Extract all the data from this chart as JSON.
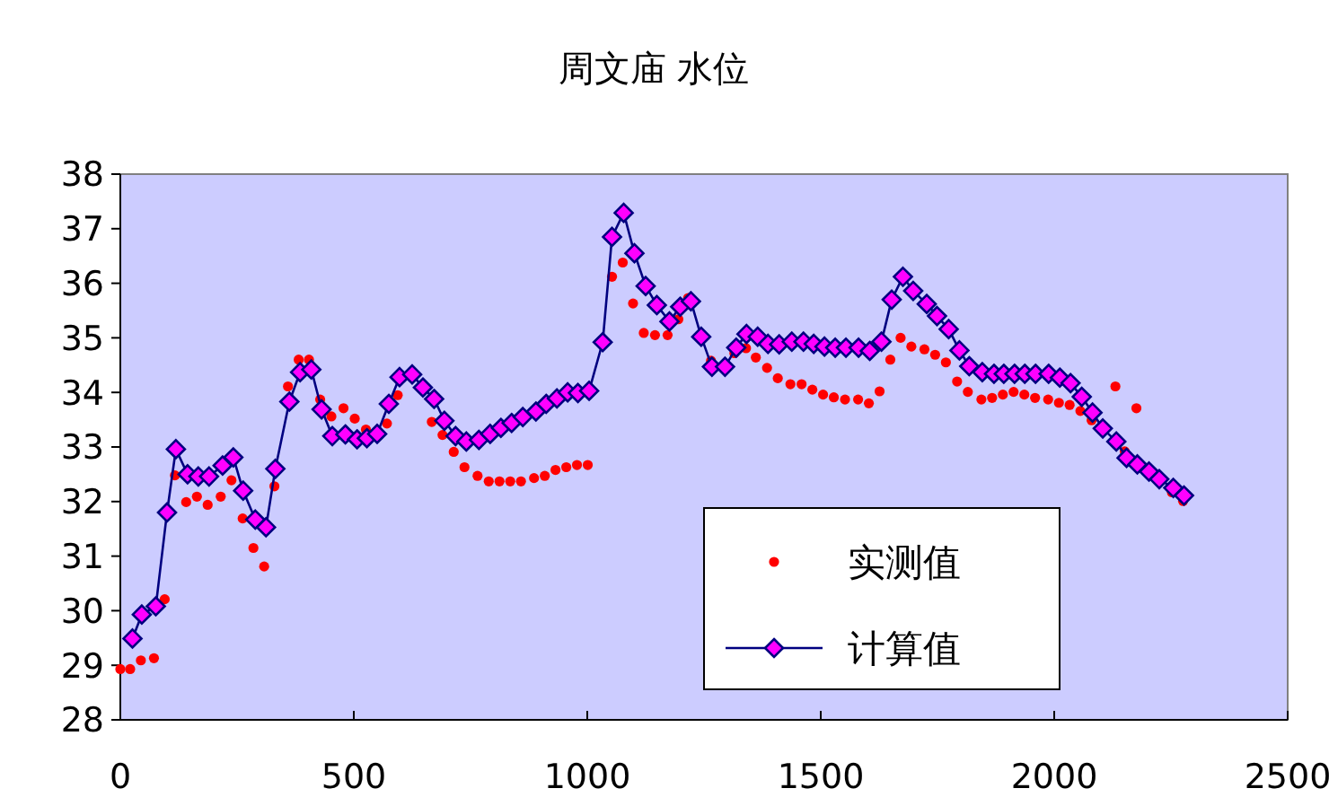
{
  "chart_data": {
    "type": "scatter",
    "title": "周文庙  水位",
    "xlim": [
      0,
      2500
    ],
    "xticks": [
      0,
      500,
      1000,
      1500,
      2000,
      2500
    ],
    "ylim": [
      28,
      38
    ],
    "yticks": [
      28,
      29,
      30,
      31,
      32,
      33,
      34,
      35,
      36,
      37,
      38
    ],
    "grid": false,
    "legend": "bottom right",
    "series": [
      {
        "name": "实测值",
        "marker": "circle",
        "color": "#ff0000",
        "x": [
          0,
          21,
          44,
          72,
          95,
          117,
          141,
          164,
          187,
          215,
          238,
          262,
          285,
          308,
          330,
          359,
          382,
          404,
          428,
          452,
          478,
          502,
          526,
          571,
          594,
          667,
          690,
          714,
          737,
          765,
          789,
          812,
          835,
          858,
          886,
          909,
          932,
          955,
          978,
          1001,
          1053,
          1076,
          1098,
          1121,
          1145,
          1172,
          1195,
          1216,
          1265,
          1315,
          1340,
          1361,
          1385,
          1408,
          1435,
          1459,
          1482,
          1505,
          1528,
          1552,
          1580,
          1603,
          1626,
          1649,
          1671,
          1694,
          1722,
          1745,
          1768,
          1792,
          1815,
          1844,
          1867,
          1890,
          1913,
          1936,
          1959,
          1987,
          2010,
          2033,
          2056,
          2080,
          2131,
          2151,
          2176,
          2252,
          2276
        ],
        "values": [
          28.93,
          28.93,
          29.09,
          29.13,
          30.21,
          32.48,
          31.99,
          32.09,
          31.94,
          32.09,
          32.39,
          31.69,
          31.15,
          30.81,
          32.28,
          34.11,
          34.6,
          34.6,
          33.87,
          33.56,
          33.71,
          33.52,
          33.32,
          33.43,
          33.95,
          33.46,
          33.22,
          32.91,
          32.63,
          32.47,
          32.37,
          32.37,
          32.37,
          32.37,
          32.43,
          32.47,
          32.58,
          32.63,
          32.67,
          32.67,
          36.12,
          36.38,
          35.63,
          35.09,
          35.05,
          35.05,
          35.34,
          35.73,
          34.58,
          34.72,
          34.81,
          34.64,
          34.45,
          34.26,
          34.15,
          34.15,
          34.05,
          33.96,
          33.91,
          33.87,
          33.87,
          33.8,
          34.02,
          34.6,
          35.0,
          34.84,
          34.79,
          34.69,
          34.55,
          34.2,
          34.01,
          33.87,
          33.9,
          33.96,
          34.01,
          33.96,
          33.9,
          33.87,
          33.81,
          33.77,
          33.66,
          33.49,
          34.11,
          32.92,
          33.71,
          32.17,
          32.01
        ]
      },
      {
        "name": "计算值",
        "type": "line",
        "marker": "diamond",
        "line_style": "solid",
        "color": "#000080",
        "x": [
          26,
          46,
          76,
          100,
          119,
          144,
          167,
          190,
          219,
          242,
          263,
          289,
          312,
          332,
          362,
          385,
          409,
          431,
          454,
          482,
          507,
          528,
          550,
          575,
          598,
          625,
          648,
          672,
          694,
          718,
          741,
          768,
          792,
          815,
          838,
          862,
          890,
          912,
          935,
          958,
          980,
          1004,
          1033,
          1053,
          1078,
          1101,
          1125,
          1149,
          1176,
          1199,
          1222,
          1244,
          1267,
          1295,
          1319,
          1341,
          1365,
          1387,
          1411,
          1438,
          1463,
          1485,
          1508,
          1531,
          1554,
          1581,
          1605,
          1630,
          1652,
          1676,
          1698,
          1727,
          1749,
          1774,
          1797,
          1818,
          1846,
          1871,
          1892,
          1915,
          1937,
          1960,
          1988,
          2012,
          2035,
          2059,
          2082,
          2104,
          2133,
          2155,
          2178,
          2203,
          2225,
          2255,
          2278
        ],
        "values": [
          29.49,
          29.93,
          30.08,
          31.8,
          32.96,
          32.5,
          32.46,
          32.46,
          32.66,
          32.81,
          32.2,
          31.67,
          31.53,
          32.6,
          33.83,
          34.37,
          34.42,
          33.69,
          33.2,
          33.23,
          33.14,
          33.16,
          33.24,
          33.79,
          34.28,
          34.33,
          34.09,
          33.88,
          33.48,
          33.2,
          33.1,
          33.13,
          33.24,
          33.35,
          33.44,
          33.55,
          33.65,
          33.79,
          33.89,
          34.0,
          33.99,
          34.03,
          34.92,
          36.85,
          37.29,
          36.55,
          35.95,
          35.6,
          35.3,
          35.57,
          35.67,
          35.02,
          34.47,
          34.47,
          34.82,
          35.07,
          35.02,
          34.89,
          34.88,
          34.93,
          34.93,
          34.89,
          34.84,
          34.82,
          34.82,
          34.82,
          34.76,
          34.93,
          35.7,
          36.12,
          35.86,
          35.62,
          35.4,
          35.16,
          34.77,
          34.48,
          34.37,
          34.34,
          34.34,
          34.34,
          34.34,
          34.34,
          34.34,
          34.27,
          34.17,
          33.92,
          33.63,
          33.34,
          33.1,
          32.8,
          32.68,
          32.55,
          32.41,
          32.25,
          32.11
        ]
      }
    ]
  }
}
